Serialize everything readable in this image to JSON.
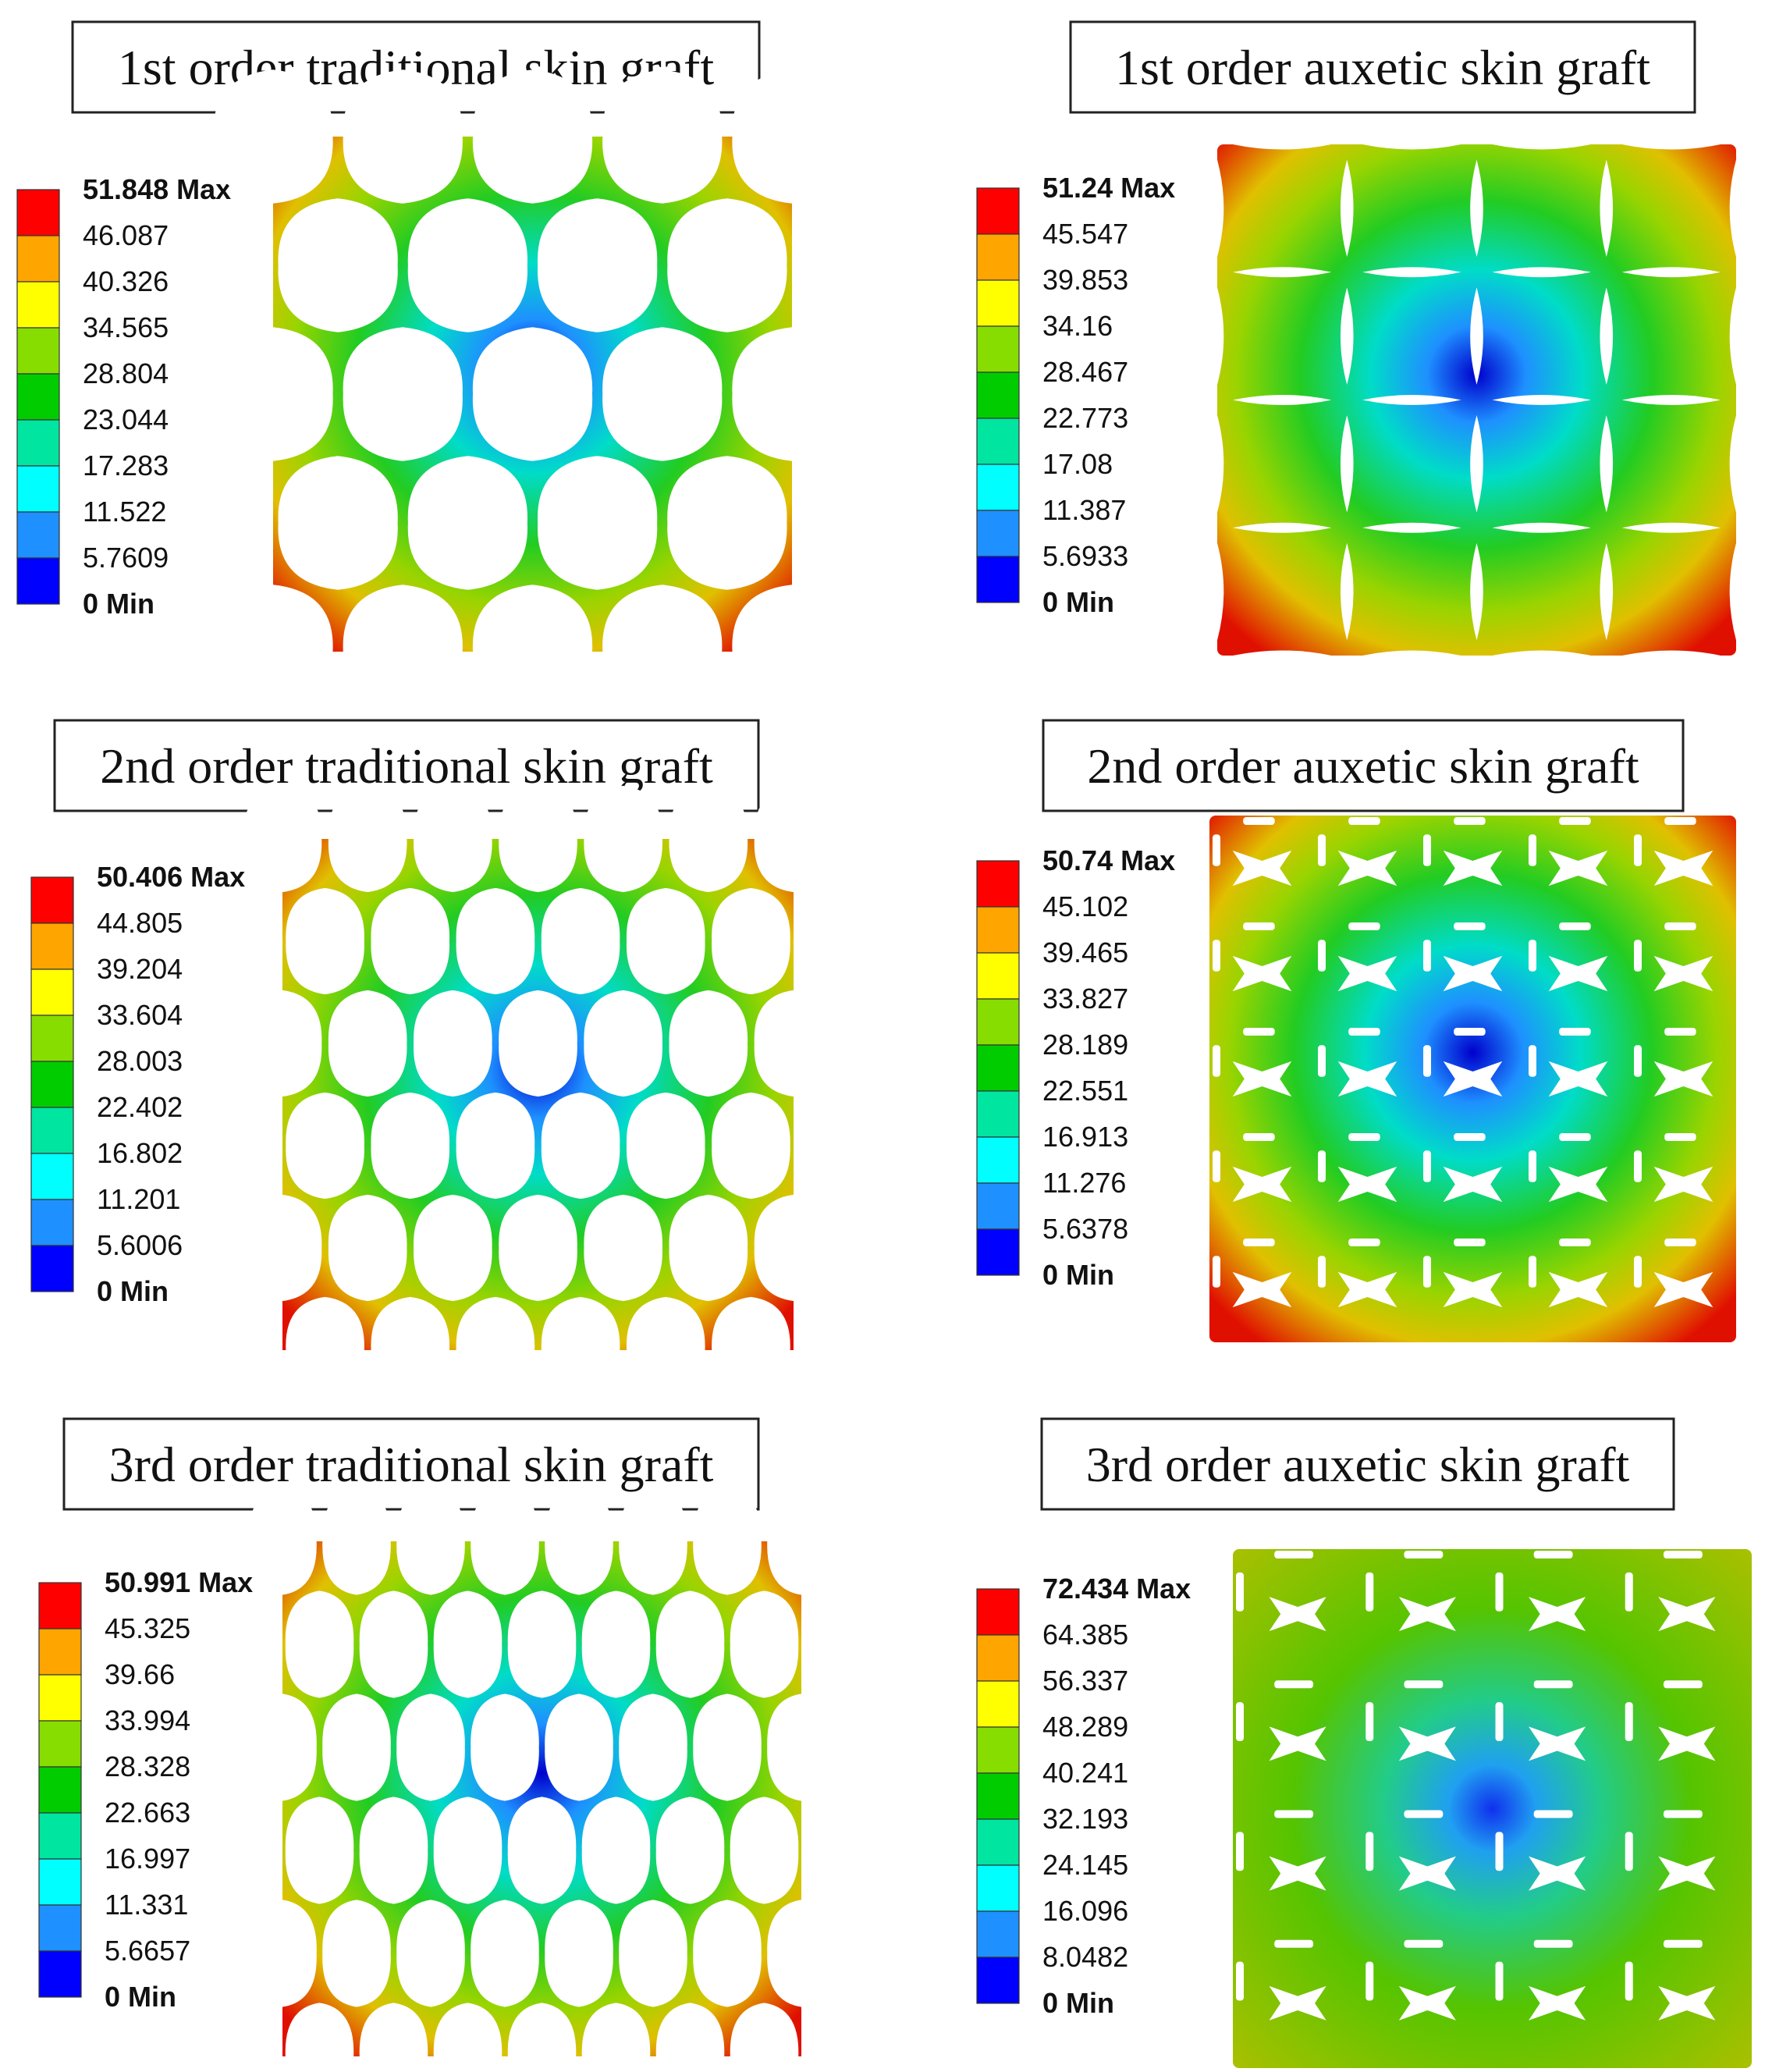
{
  "colors": {
    "scale": [
      "#0000ff",
      "#1e90ff",
      "#00ffff",
      "#00e5a0",
      "#00cc00",
      "#88dd00",
      "#ffff00",
      "#ffa500",
      "#ff0000"
    ],
    "frame": "#222222",
    "background": "#ffffff"
  },
  "panels": [
    {
      "title": "1st order traditional skin graft",
      "pattern": "traditional",
      "order": 1,
      "legend": [
        "51.848 Max",
        "46.087",
        "40.326",
        "34.565",
        "28.804",
        "23.044",
        "17.283",
        "11.522",
        "5.7609",
        "0 Min"
      ]
    },
    {
      "title": "1st order auxetic skin graft",
      "pattern": "auxetic",
      "order": 1,
      "legend": [
        "51.24 Max",
        "45.547",
        "39.853",
        "34.16",
        "28.467",
        "22.773",
        "17.08",
        "11.387",
        "5.6933",
        "0 Min"
      ]
    },
    {
      "title": "2nd order traditional skin graft",
      "pattern": "traditional",
      "order": 2,
      "legend": [
        "50.406 Max",
        "44.805",
        "39.204",
        "33.604",
        "28.003",
        "22.402",
        "16.802",
        "11.201",
        "5.6006",
        "0 Min"
      ]
    },
    {
      "title": "2nd order auxetic skin graft",
      "pattern": "auxetic",
      "order": 2,
      "legend": [
        "50.74 Max",
        "45.102",
        "39.465",
        "33.827",
        "28.189",
        "22.551",
        "16.913",
        "11.276",
        "5.6378",
        "0 Min"
      ]
    },
    {
      "title": "3rd order traditional skin graft",
      "pattern": "traditional",
      "order": 3,
      "legend": [
        "50.991 Max",
        "45.325",
        "39.66",
        "33.994",
        "28.328",
        "22.663",
        "16.997",
        "11.331",
        "5.6657",
        "0 Min"
      ]
    },
    {
      "title": "3rd order auxetic skin graft",
      "pattern": "auxetic",
      "order": 3,
      "legend": [
        "72.434 Max",
        "64.385",
        "56.337",
        "48.289",
        "40.241",
        "32.193",
        "24.145",
        "16.096",
        "8.0482",
        "0 Min"
      ]
    }
  ]
}
